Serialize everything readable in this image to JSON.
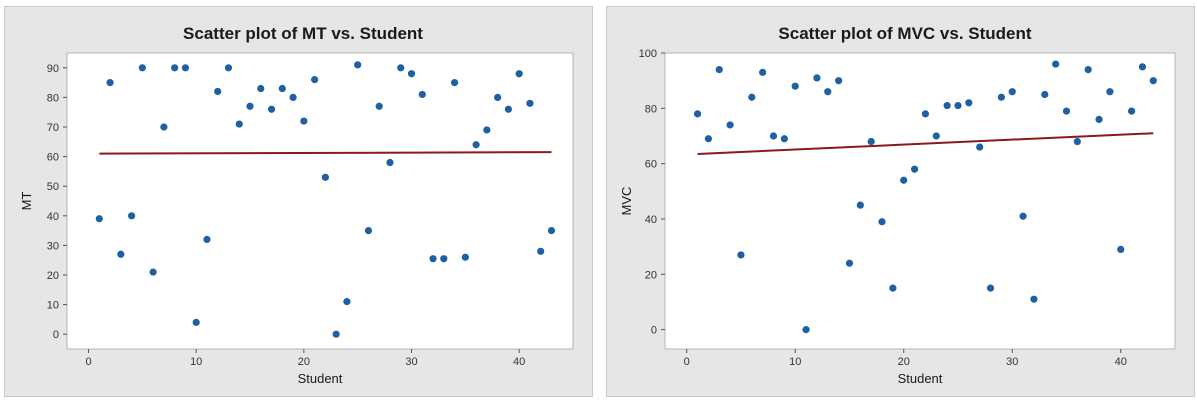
{
  "chart_data": [
    {
      "type": "scatter",
      "title": "Scatter plot of MT vs. Student",
      "xlabel": "Student",
      "ylabel": "MT",
      "xlim": [
        -2,
        45
      ],
      "ylim": [
        -5,
        95
      ],
      "xticks": [
        0,
        10,
        20,
        30,
        40
      ],
      "yticks": [
        0,
        10,
        20,
        30,
        40,
        50,
        60,
        70,
        80,
        90
      ],
      "grid": false,
      "point_color": "#1f5fa3",
      "fit_color": "#8b1a1a",
      "series": [
        {
          "x": [
            1,
            2,
            3,
            4,
            5,
            6,
            7,
            8,
            9,
            10,
            11,
            12,
            13,
            14,
            15,
            16,
            17,
            18,
            19,
            20,
            21,
            22,
            23,
            24,
            25,
            26,
            27,
            28,
            29,
            30,
            31,
            32,
            33,
            34,
            35,
            36,
            37,
            38,
            39,
            40,
            41,
            42,
            43
          ],
          "y": [
            39,
            85,
            27,
            40,
            90,
            21,
            70,
            90,
            90,
            4,
            32,
            82,
            90,
            71,
            77,
            83,
            76,
            83,
            80,
            72,
            86,
            53,
            0,
            11,
            91,
            35,
            77,
            58,
            90,
            88,
            81,
            25.5,
            25.5,
            85,
            26,
            64,
            69,
            80,
            76,
            88,
            78,
            28,
            35
          ]
        }
      ],
      "fit_line": {
        "x": [
          1,
          43
        ],
        "y": [
          61,
          61.5
        ]
      }
    },
    {
      "type": "scatter",
      "title": "Scatter plot of MVC vs. Student",
      "xlabel": "Student",
      "ylabel": "MVC",
      "xlim": [
        -2,
        45
      ],
      "ylim": [
        -7,
        100
      ],
      "xticks": [
        0,
        10,
        20,
        30,
        40
      ],
      "yticks": [
        0,
        20,
        40,
        60,
        80,
        100
      ],
      "grid": false,
      "point_color": "#1f5fa3",
      "fit_color": "#8b1a1a",
      "series": [
        {
          "x": [
            1,
            2,
            3,
            4,
            5,
            6,
            7,
            8,
            9,
            10,
            11,
            12,
            13,
            14,
            15,
            16,
            17,
            18,
            19,
            20,
            21,
            22,
            23,
            24,
            25,
            26,
            27,
            28,
            29,
            30,
            31,
            32,
            33,
            34,
            35,
            36,
            37,
            38,
            39,
            40,
            41,
            42,
            43
          ],
          "y": [
            78,
            69,
            94,
            74,
            27,
            84,
            93,
            70,
            69,
            88,
            0,
            91,
            86,
            90,
            24,
            45,
            68,
            39,
            15,
            54,
            58,
            78,
            70,
            81,
            81,
            82,
            66,
            15,
            84,
            86,
            41,
            11,
            85,
            96,
            79,
            68,
            94,
            76,
            86,
            29,
            79,
            95,
            90
          ]
        }
      ],
      "fit_line": {
        "x": [
          1,
          43
        ],
        "y": [
          63.5,
          71
        ]
      }
    }
  ]
}
